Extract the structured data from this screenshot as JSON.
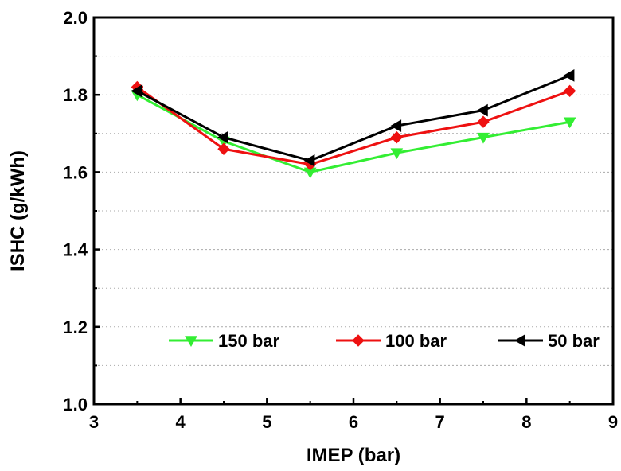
{
  "chart_data": {
    "type": "line",
    "xlabel": "IMEP (bar)",
    "ylabel": "ISHC (g/kWh)",
    "xlim": [
      3,
      9
    ],
    "ylim": [
      1.0,
      2.0
    ],
    "x_ticks": [
      "3",
      "4",
      "5",
      "6",
      "7",
      "8",
      "9"
    ],
    "y_ticks": [
      "1.0",
      "1.2",
      "1.4",
      "1.6",
      "1.8",
      "2.0"
    ],
    "grid": "horizontal dotted",
    "legend_position": "bottom-center, inside",
    "series": [
      {
        "name": "150 bar",
        "color": "#33ee33",
        "marker": "triangle-down",
        "x": [
          3.5,
          4.5,
          5.5,
          6.5,
          7.5,
          8.5
        ],
        "y": [
          1.8,
          1.68,
          1.6,
          1.65,
          1.69,
          1.73
        ]
      },
      {
        "name": "100 bar",
        "color": "#ee1111",
        "marker": "diamond",
        "x": [
          3.5,
          4.5,
          5.5,
          6.5,
          7.5,
          8.5
        ],
        "y": [
          1.82,
          1.66,
          1.62,
          1.69,
          1.73,
          1.81
        ]
      },
      {
        "name": "50 bar",
        "color": "#000000",
        "marker": "triangle-left",
        "x": [
          3.5,
          4.5,
          5.5,
          6.5,
          7.5,
          8.5
        ],
        "y": [
          1.81,
          1.69,
          1.63,
          1.72,
          1.76,
          1.85
        ]
      }
    ]
  }
}
